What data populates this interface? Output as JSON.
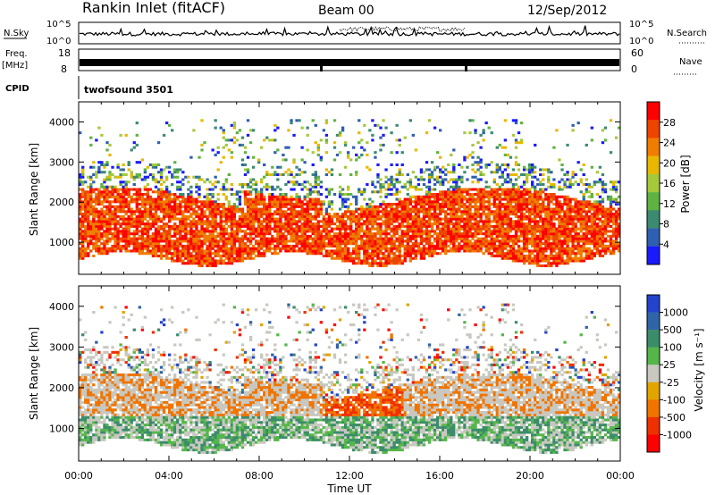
{
  "header": {
    "station": "Rankin Inlet (fitACF)",
    "beam": "Beam 00",
    "date": "12/Sep/2012"
  },
  "strips": {
    "noise_label": "N.Sky",
    "noise_right_label": "N.Search",
    "noise_ticks_left": [
      "10^5",
      "10^0"
    ],
    "noise_ticks_right": [
      "10^5",
      "10^0"
    ],
    "freq_label_line1": "Freq.",
    "freq_label_line2": "[MHz]",
    "freq_ticks": [
      "18",
      "8"
    ],
    "nave_label": "Nave",
    "nave_ticks": [
      "60",
      "0"
    ],
    "cpid_label": "CPID",
    "cpid_value": "twofsound 3501"
  },
  "colors": {
    "power_scale": [
      "#1a1aff",
      "#2f5fb0",
      "#3c8a72",
      "#5fb342",
      "#a6c93c",
      "#e8b800",
      "#f07d00",
      "#ee4400",
      "#ff0000"
    ],
    "velocity_scale": [
      "#2244cc",
      "#2f64a8",
      "#3b8c6a",
      "#55b64a",
      "#c8c8c0",
      "#e2a400",
      "#f07400",
      "#ef3000",
      "#ff0000"
    ]
  },
  "chart_data": [
    {
      "type": "heatmap",
      "name": "power-panel",
      "ylabel": "Slant Range [km]",
      "yticks": [
        "1000",
        "2000",
        "3000",
        "4000"
      ],
      "ylim": [
        200,
        4500
      ],
      "xlim": [
        "00:00",
        "24:00"
      ],
      "colorbar": {
        "label": "Power [dB]",
        "ticks": [
          "4",
          "8",
          "12",
          "16",
          "20",
          "24",
          "28"
        ],
        "range": [
          0,
          32
        ]
      }
    },
    {
      "type": "heatmap",
      "name": "velocity-panel",
      "ylabel": "Slant Range [km]",
      "yticks": [
        "1000",
        "2000",
        "3000",
        "4000"
      ],
      "ylim": [
        200,
        4500
      ],
      "xlabel": "Time UT",
      "xticks": [
        "00:00",
        "04:00",
        "08:00",
        "12:00",
        "16:00",
        "20:00",
        "00:00"
      ],
      "xlim": [
        "00:00",
        "24:00"
      ],
      "colorbar": {
        "label": "Velocity [m s⁻¹]",
        "ticks": [
          "1000",
          "500",
          "100",
          "25",
          "-25",
          "-100",
          "-500",
          "-1000"
        ]
      }
    }
  ]
}
